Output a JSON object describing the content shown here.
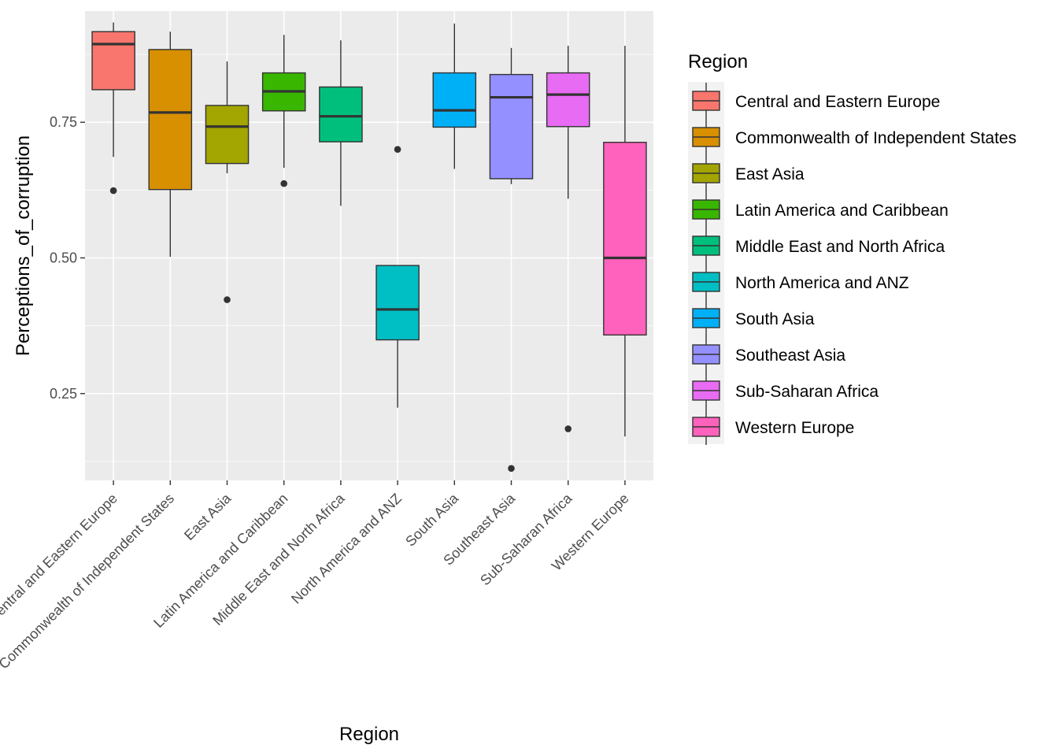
{
  "chart_data": {
    "type": "boxplot",
    "xlabel": "Region",
    "ylabel": "Perceptions_of_corruption",
    "ylim": [
      0.09,
      0.955
    ],
    "yticks": [
      0.25,
      0.5,
      0.75
    ],
    "ytick_labels": [
      "0.25",
      "0.50",
      "0.75"
    ],
    "grid": true,
    "legend": {
      "title": "Region",
      "placement": "right"
    },
    "categories": [
      "Central and Eastern Europe",
      "Commonwealth of Independent States",
      "East Asia",
      "Latin America and Caribbean",
      "Middle East and North Africa",
      "North America and ANZ",
      "South Asia",
      "Southeast Asia",
      "Sub-Saharan Africa",
      "Western Europe"
    ],
    "colors": [
      "#F8766D",
      "#D89000",
      "#A3A500",
      "#39B600",
      "#00BF7D",
      "#00BFC4",
      "#00B0F6",
      "#9590FF",
      "#E76BF3",
      "#FF62BC"
    ],
    "boxes": [
      {
        "whisker_low": 0.686,
        "q1": 0.81,
        "median": 0.894,
        "q3": 0.917,
        "whisker_high": 0.934,
        "outliers": [
          0.624
        ]
      },
      {
        "whisker_low": 0.502,
        "q1": 0.626,
        "median": 0.768,
        "q3": 0.884,
        "whisker_high": 0.917,
        "outliers": []
      },
      {
        "whisker_low": 0.656,
        "q1": 0.674,
        "median": 0.742,
        "q3": 0.781,
        "whisker_high": 0.862,
        "outliers": [
          0.423
        ]
      },
      {
        "whisker_low": 0.666,
        "q1": 0.771,
        "median": 0.807,
        "q3": 0.841,
        "whisker_high": 0.911,
        "outliers": [
          0.637
        ]
      },
      {
        "whisker_low": 0.596,
        "q1": 0.714,
        "median": 0.761,
        "q3": 0.815,
        "whisker_high": 0.901,
        "outliers": []
      },
      {
        "whisker_low": 0.224,
        "q1": 0.349,
        "median": 0.405,
        "q3": 0.486,
        "whisker_high": 0.486,
        "outliers": [
          0.7
        ]
      },
      {
        "whisker_low": 0.664,
        "q1": 0.741,
        "median": 0.772,
        "q3": 0.841,
        "whisker_high": 0.932,
        "outliers": []
      },
      {
        "whisker_low": 0.636,
        "q1": 0.646,
        "median": 0.796,
        "q3": 0.838,
        "whisker_high": 0.887,
        "outliers": [
          0.112
        ]
      },
      {
        "whisker_low": 0.609,
        "q1": 0.742,
        "median": 0.801,
        "q3": 0.841,
        "whisker_high": 0.891,
        "outliers": [
          0.185
        ]
      },
      {
        "whisker_low": 0.171,
        "q1": 0.358,
        "median": 0.5,
        "q3": 0.713,
        "whisker_high": 0.891,
        "outliers": []
      }
    ]
  }
}
